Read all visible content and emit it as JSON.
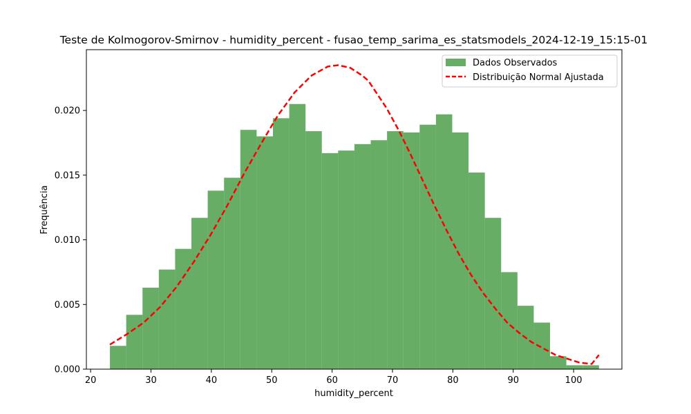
{
  "chart_data": {
    "type": "bar",
    "title": "Teste de Kolmogorov-Smirnov - humidity_percent - fusao_temp_sarima_es_statsmodels_2024-12-19_15:15-01",
    "xlabel": "humidity_percent",
    "ylabel": "Frequência",
    "xlim": [
      19.3,
      108.0
    ],
    "ylim": [
      0,
      0.0247
    ],
    "x_ticks": [
      20,
      30,
      40,
      50,
      60,
      70,
      80,
      90,
      100
    ],
    "y_ticks": [
      0.0,
      0.005,
      0.01,
      0.015,
      0.02
    ],
    "x_tick_labels": [
      "20",
      "30",
      "40",
      "50",
      "60",
      "70",
      "80",
      "90",
      "100"
    ],
    "y_tick_labels": [
      "0.000",
      "0.005",
      "0.010",
      "0.015",
      "0.020"
    ],
    "grid": false,
    "legend_position": "top-right",
    "series": [
      {
        "name": "Dados Observados",
        "kind": "histogram",
        "color": "#4c9f4a",
        "bins": [
          {
            "x0": 23.2,
            "x1": 25.9,
            "value": 0.0018
          },
          {
            "x0": 25.9,
            "x1": 28.6,
            "value": 0.0042
          },
          {
            "x0": 28.6,
            "x1": 31.3,
            "value": 0.0063
          },
          {
            "x0": 31.3,
            "x1": 34.0,
            "value": 0.0077
          },
          {
            "x0": 34.0,
            "x1": 36.7,
            "value": 0.0093
          },
          {
            "x0": 36.7,
            "x1": 39.4,
            "value": 0.0117
          },
          {
            "x0": 39.4,
            "x1": 42.1,
            "value": 0.0138
          },
          {
            "x0": 42.1,
            "x1": 44.8,
            "value": 0.0148
          },
          {
            "x0": 44.8,
            "x1": 47.5,
            "value": 0.0185
          },
          {
            "x0": 47.5,
            "x1": 50.2,
            "value": 0.018
          },
          {
            "x0": 50.2,
            "x1": 52.9,
            "value": 0.0194
          },
          {
            "x0": 52.9,
            "x1": 55.6,
            "value": 0.0205
          },
          {
            "x0": 55.6,
            "x1": 58.3,
            "value": 0.0184
          },
          {
            "x0": 58.3,
            "x1": 61.0,
            "value": 0.0167
          },
          {
            "x0": 61.0,
            "x1": 63.7,
            "value": 0.0169
          },
          {
            "x0": 63.7,
            "x1": 66.4,
            "value": 0.0174
          },
          {
            "x0": 66.4,
            "x1": 69.1,
            "value": 0.0177
          },
          {
            "x0": 69.1,
            "x1": 71.8,
            "value": 0.0184
          },
          {
            "x0": 71.8,
            "x1": 74.5,
            "value": 0.0183
          },
          {
            "x0": 74.5,
            "x1": 77.2,
            "value": 0.0189
          },
          {
            "x0": 77.2,
            "x1": 79.9,
            "value": 0.0197
          },
          {
            "x0": 79.9,
            "x1": 82.6,
            "value": 0.0183
          },
          {
            "x0": 82.6,
            "x1": 85.3,
            "value": 0.0152
          },
          {
            "x0": 85.3,
            "x1": 88.0,
            "value": 0.0117
          },
          {
            "x0": 88.0,
            "x1": 90.7,
            "value": 0.0075
          },
          {
            "x0": 90.7,
            "x1": 93.4,
            "value": 0.0049
          },
          {
            "x0": 93.4,
            "x1": 96.1,
            "value": 0.0036
          },
          {
            "x0": 96.1,
            "x1": 98.8,
            "value": 0.001
          },
          {
            "x0": 98.8,
            "x1": 101.5,
            "value": 0.0003
          },
          {
            "x0": 101.5,
            "x1": 104.2,
            "value": 0.0003
          }
        ]
      },
      {
        "name": "Distribuição Normal Ajustada",
        "kind": "line",
        "style": "dashed",
        "color": "#ff0000",
        "x": [
          23.2,
          26.0,
          28.8,
          31.5,
          34.3,
          37.1,
          39.9,
          42.7,
          45.4,
          48.2,
          51.0,
          53.8,
          56.6,
          59.3,
          61.0,
          63.0,
          65.0,
          66.0,
          67.0,
          69.0,
          71.0,
          73.0,
          75.0,
          77.0,
          79.0,
          81.0,
          83.0,
          85.0,
          87.0,
          89.0,
          91.0,
          93.0,
          95.0,
          97.0,
          99.0,
          101.0,
          103.0,
          104.2
        ],
        "y": [
          0.0019,
          0.0027,
          0.0036,
          0.0048,
          0.0064,
          0.0083,
          0.0104,
          0.0127,
          0.0151,
          0.0174,
          0.0196,
          0.0214,
          0.0227,
          0.0234,
          0.0235,
          0.0233,
          0.0227,
          0.0223,
          0.0216,
          0.0202,
          0.0185,
          0.0166,
          0.0146,
          0.0126,
          0.0107,
          0.0089,
          0.0073,
          0.0059,
          0.0047,
          0.0036,
          0.0028,
          0.0021,
          0.0016,
          0.0011,
          0.0008,
          0.0005,
          0.0004,
          0.0011
        ]
      }
    ]
  }
}
